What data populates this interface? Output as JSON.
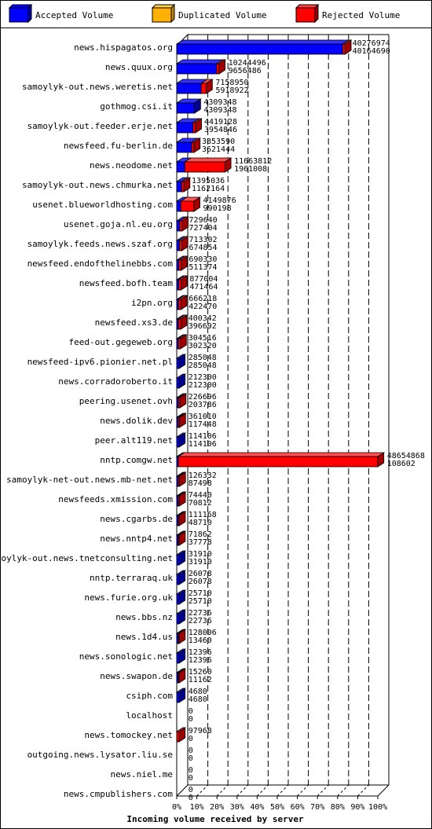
{
  "legend": {
    "accepted": "Accepted Volume",
    "duplicated": "Duplicated Volume",
    "rejected": "Rejected Volume"
  },
  "colors": {
    "accepted": "#0000ff",
    "duplicated": "#ffb000",
    "rejected": "#ff0000",
    "rejected_dark": "#a00000",
    "accepted_dark": "#000090"
  },
  "chart_data": {
    "type": "bar",
    "orientation": "horizontal",
    "xlabel": "Incoming volume received by server",
    "xticks": [
      "0%",
      "10%",
      "20%",
      "30%",
      "40%",
      "50%",
      "60%",
      "70%",
      "80%",
      "90%",
      "100%"
    ],
    "xlim": [
      0,
      48654868
    ],
    "series_names": [
      "Accepted Volume",
      "Duplicated Volume",
      "Rejected Volume"
    ],
    "servers": [
      {
        "name": "news.hispagatos.org",
        "total": "40276974",
        "accepted": "40164690",
        "total_v": 40276974,
        "accepted_v": 40164690
      },
      {
        "name": "news.quux.org",
        "total": "10244496",
        "accepted": "9656486",
        "total_v": 10244496,
        "accepted_v": 9656486
      },
      {
        "name": "samoylyk-out.news.weretis.net",
        "total": "7158950",
        "accepted": "5918922",
        "total_v": 7158950,
        "accepted_v": 5918922
      },
      {
        "name": "gothmog.csi.it",
        "total": "4309348",
        "accepted": "4309348",
        "total_v": 4309348,
        "accepted_v": 4309348
      },
      {
        "name": "samoylyk-out.feeder.erje.net",
        "total": "4419128",
        "accepted": "3954846",
        "total_v": 4419128,
        "accepted_v": 3954846
      },
      {
        "name": "newsfeed.fu-berlin.de",
        "total": "3853590",
        "accepted": "3621444",
        "total_v": 3853590,
        "accepted_v": 3621444
      },
      {
        "name": "news.neodome.net",
        "total": "11663812",
        "accepted": "1961008",
        "total_v": 11663812,
        "accepted_v": 1961008
      },
      {
        "name": "samoylyk-out.news.chmurka.net",
        "total": "1395036",
        "accepted": "1162164",
        "total_v": 1395036,
        "accepted_v": 1162164
      },
      {
        "name": "usenet.blueworldhosting.com",
        "total": "4149876",
        "accepted": "990198",
        "total_v": 4149876,
        "accepted_v": 990198
      },
      {
        "name": "usenet.goja.nl.eu.org",
        "total": "729640",
        "accepted": "727404",
        "total_v": 729640,
        "accepted_v": 727404
      },
      {
        "name": "samoylyk.feeds.news.szaf.org",
        "total": "713302",
        "accepted": "674854",
        "total_v": 713302,
        "accepted_v": 674854
      },
      {
        "name": "newsfeed.endofthelinebbs.com",
        "total": "690330",
        "accepted": "511374",
        "total_v": 690330,
        "accepted_v": 511374
      },
      {
        "name": "newsfeed.bofh.team",
        "total": "877004",
        "accepted": "471464",
        "total_v": 877004,
        "accepted_v": 471464
      },
      {
        "name": "i2pn.org",
        "total": "666218",
        "accepted": "422470",
        "total_v": 666218,
        "accepted_v": 422470
      },
      {
        "name": "newsfeed.xs3.de",
        "total": "400342",
        "accepted": "396692",
        "total_v": 400342,
        "accepted_v": 396692
      },
      {
        "name": "feed-out.gegeweb.org",
        "total": "304516",
        "accepted": "302320",
        "total_v": 304516,
        "accepted_v": 302320
      },
      {
        "name": "newsfeed-ipv6.pionier.net.pl",
        "total": "285048",
        "accepted": "285048",
        "total_v": 285048,
        "accepted_v": 285048
      },
      {
        "name": "news.corradoroberto.it",
        "total": "212300",
        "accepted": "212300",
        "total_v": 212300,
        "accepted_v": 212300
      },
      {
        "name": "peering.usenet.ovh",
        "total": "226696",
        "accepted": "203786",
        "total_v": 226696,
        "accepted_v": 203786
      },
      {
        "name": "news.dolik.dev",
        "total": "361010",
        "accepted": "117448",
        "total_v": 361010,
        "accepted_v": 117448
      },
      {
        "name": "peer.alt119.net",
        "total": "114106",
        "accepted": "114106",
        "total_v": 114106,
        "accepted_v": 114106
      },
      {
        "name": "nntp.comgw.net",
        "total": "48654868",
        "accepted": "108602",
        "total_v": 48654868,
        "accepted_v": 108602
      },
      {
        "name": "samoylyk-net-out.news.mb-net.net",
        "total": "126332",
        "accepted": "87498",
        "total_v": 126332,
        "accepted_v": 87498
      },
      {
        "name": "newsfeeds.xmission.com",
        "total": "74440",
        "accepted": "70812",
        "total_v": 74440,
        "accepted_v": 70812
      },
      {
        "name": "news.cgarbs.de",
        "total": "111168",
        "accepted": "48710",
        "total_v": 111168,
        "accepted_v": 48710
      },
      {
        "name": "news.nntp4.net",
        "total": "71862",
        "accepted": "37778",
        "total_v": 71862,
        "accepted_v": 37778
      },
      {
        "name": "samoylyk-out.news.tnetconsulting.net",
        "total": "31910",
        "accepted": "31910",
        "total_v": 31910,
        "accepted_v": 31910
      },
      {
        "name": "nntp.terraraq.uk",
        "total": "26078",
        "accepted": "26078",
        "total_v": 26078,
        "accepted_v": 26078
      },
      {
        "name": "news.furie.org.uk",
        "total": "25710",
        "accepted": "25710",
        "total_v": 25710,
        "accepted_v": 25710
      },
      {
        "name": "news.bbs.nz",
        "total": "22736",
        "accepted": "22736",
        "total_v": 22736,
        "accepted_v": 22736
      },
      {
        "name": "news.1d4.us",
        "total": "128006",
        "accepted": "13460",
        "total_v": 128006,
        "accepted_v": 13460
      },
      {
        "name": "news.sonologic.net",
        "total": "12396",
        "accepted": "12396",
        "total_v": 12396,
        "accepted_v": 12396
      },
      {
        "name": "news.swapon.de",
        "total": "15260",
        "accepted": "11162",
        "total_v": 15260,
        "accepted_v": 11162
      },
      {
        "name": "csiph.com",
        "total": "4680",
        "accepted": "4680",
        "total_v": 4680,
        "accepted_v": 4680
      },
      {
        "name": "localhost",
        "total": "0",
        "accepted": "0",
        "total_v": 0,
        "accepted_v": 0
      },
      {
        "name": "news.tomockey.net",
        "total": "97968",
        "accepted": "0",
        "total_v": 97968,
        "accepted_v": 0
      },
      {
        "name": "outgoing.news.lysator.liu.se",
        "total": "0",
        "accepted": "0",
        "total_v": 0,
        "accepted_v": 0
      },
      {
        "name": "news.niel.me",
        "total": "0",
        "accepted": "0",
        "total_v": 0,
        "accepted_v": 0
      },
      {
        "name": "news.cmpublishers.com",
        "total": "0",
        "accepted": "0",
        "total_v": 0,
        "accepted_v": 0
      }
    ]
  }
}
